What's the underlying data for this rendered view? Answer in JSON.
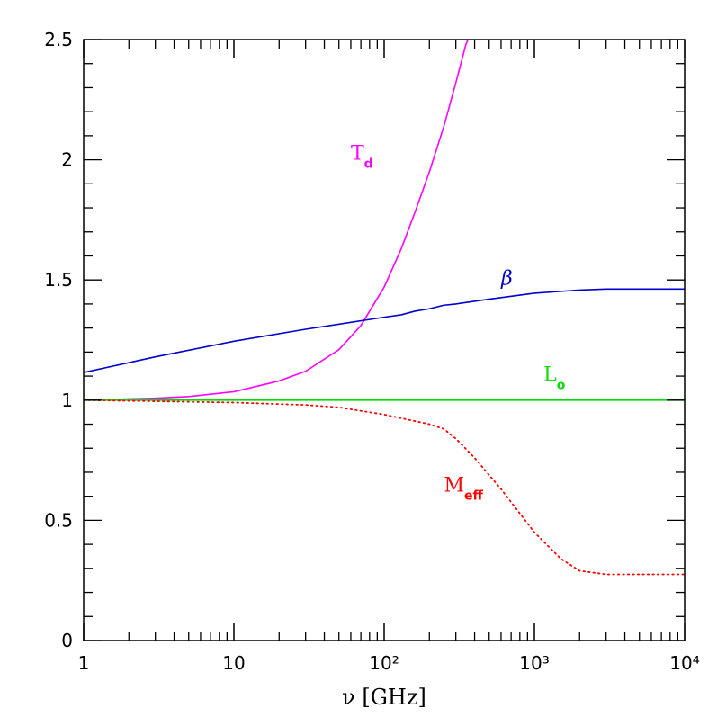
{
  "chart_data": {
    "type": "line",
    "title": "",
    "xlabel": "ν [GHz]",
    "ylabel": "",
    "x_scale": "log",
    "xlim": [
      1,
      10000
    ],
    "ylim": [
      0,
      2.5
    ],
    "grid": false,
    "legend": "none",
    "x_ticks": [
      {
        "value": 1,
        "label": "1"
      },
      {
        "value": 10,
        "label": "10"
      },
      {
        "value": 100,
        "label": "10²"
      },
      {
        "value": 1000,
        "label": "10³"
      },
      {
        "value": 10000,
        "label": "10⁴"
      }
    ],
    "y_ticks": [
      {
        "value": 0,
        "label": "0"
      },
      {
        "value": 0.5,
        "label": "0.5"
      },
      {
        "value": 1,
        "label": "1"
      },
      {
        "value": 1.5,
        "label": "1.5"
      },
      {
        "value": 2,
        "label": "2"
      },
      {
        "value": 2.5,
        "label": "2.5"
      }
    ],
    "series": [
      {
        "main": "T",
        "sub": "d",
        "color": "#ff00ff",
        "style": "solid",
        "label_at": [
          60,
          2.0
        ],
        "x": [
          1,
          3,
          5,
          10,
          20,
          30,
          50,
          70,
          100,
          130,
          160,
          200,
          250,
          300,
          350,
          400
        ],
        "y": [
          1.0,
          1.008,
          1.015,
          1.035,
          1.08,
          1.12,
          1.21,
          1.31,
          1.47,
          1.63,
          1.78,
          1.95,
          2.14,
          2.32,
          2.48,
          2.56
        ]
      },
      {
        "main": "β",
        "sub": "",
        "color": "#0000cc",
        "style": "solid",
        "label_at": [
          600,
          1.48
        ],
        "x": [
          1,
          3,
          10,
          30,
          100,
          130,
          160,
          200,
          250,
          300,
          500,
          1000,
          2000,
          3000,
          5000,
          10000
        ],
        "y": [
          1.115,
          1.18,
          1.245,
          1.295,
          1.345,
          1.355,
          1.37,
          1.38,
          1.395,
          1.4,
          1.42,
          1.445,
          1.458,
          1.462,
          1.462,
          1.462
        ]
      },
      {
        "main": "L",
        "sub": "o",
        "color": "#00dd00",
        "style": "solid",
        "label_at": [
          1150,
          1.08
        ],
        "x": [
          1,
          10000
        ],
        "y": [
          1.0,
          1.0
        ]
      },
      {
        "main": "M",
        "sub": "eff",
        "color": "#ff0000",
        "style": "dotted",
        "label_at": [
          250,
          0.62
        ],
        "x": [
          1,
          10,
          30,
          50,
          100,
          200,
          250,
          300,
          400,
          600,
          1000,
          1500,
          2000,
          3000,
          5000,
          10000
        ],
        "y": [
          1.0,
          0.99,
          0.98,
          0.97,
          0.94,
          0.9,
          0.88,
          0.84,
          0.76,
          0.63,
          0.45,
          0.34,
          0.29,
          0.275,
          0.275,
          0.275
        ]
      }
    ]
  }
}
